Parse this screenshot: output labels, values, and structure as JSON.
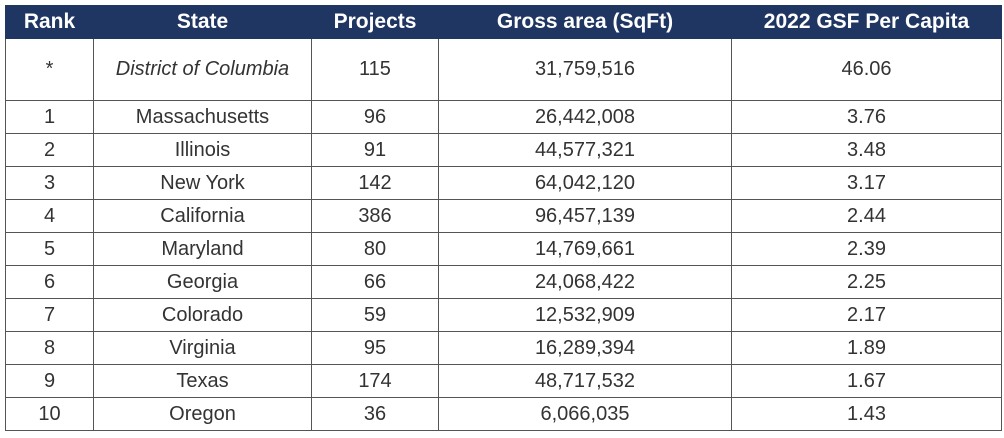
{
  "table": {
    "headers": [
      "Rank",
      "State",
      "Projects",
      "Gross area (SqFt)",
      "2022 GSF Per Capita"
    ],
    "rows": [
      {
        "rank": "*",
        "state": "District of Columbia",
        "projects": "115",
        "gross_area": "31,759,516",
        "gsf_per_capita": "46.06"
      },
      {
        "rank": "1",
        "state": "Massachusetts",
        "projects": "96",
        "gross_area": "26,442,008",
        "gsf_per_capita": "3.76"
      },
      {
        "rank": "2",
        "state": "Illinois",
        "projects": "91",
        "gross_area": "44,577,321",
        "gsf_per_capita": "3.48"
      },
      {
        "rank": "3",
        "state": "New York",
        "projects": "142",
        "gross_area": "64,042,120",
        "gsf_per_capita": "3.17"
      },
      {
        "rank": "4",
        "state": "California",
        "projects": "386",
        "gross_area": "96,457,139",
        "gsf_per_capita": "2.44"
      },
      {
        "rank": "5",
        "state": "Maryland",
        "projects": "80",
        "gross_area": "14,769,661",
        "gsf_per_capita": "2.39"
      },
      {
        "rank": "6",
        "state": "Georgia",
        "projects": "66",
        "gross_area": "24,068,422",
        "gsf_per_capita": "2.25"
      },
      {
        "rank": "7",
        "state": "Colorado",
        "projects": "59",
        "gross_area": "12,532,909",
        "gsf_per_capita": "2.17"
      },
      {
        "rank": "8",
        "state": "Virginia",
        "projects": "95",
        "gross_area": "16,289,394",
        "gsf_per_capita": "1.89"
      },
      {
        "rank": "9",
        "state": "Texas",
        "projects": "174",
        "gross_area": "48,717,532",
        "gsf_per_capita": "1.67"
      },
      {
        "rank": "10",
        "state": "Oregon",
        "projects": "36",
        "gross_area": "6,066,035",
        "gsf_per_capita": "1.43"
      }
    ]
  },
  "colors": {
    "header_background": "#1f3562",
    "header_text": "#ffffff",
    "cell_text": "#333333",
    "border": "#555555"
  }
}
